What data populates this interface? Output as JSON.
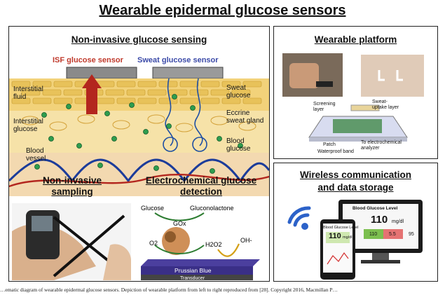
{
  "title": "Wearable epidermal glucose sensors",
  "panels": {
    "noninvasive_sensing": {
      "title": "Non-invasive glucose sensing",
      "isf_sensor": "ISF glucose sensor",
      "sweat_sensor": "Sweat glucose sensor",
      "labels": {
        "interstitial_fluid": "Interstitial\nfluid",
        "interstitial_glucose": "Interstitial\nglucose",
        "blood_vessel": "Blood\nvessel",
        "sweat_glucose": "Sweat\nglucose",
        "eccrine_gland": "Eccrine\nsweat gland",
        "blood_glucose": "Blood\nglucose"
      },
      "colors": {
        "isf": "#c0392b",
        "sweat": "#3b4aa8"
      }
    },
    "sampling": {
      "title": "Non-invasive\nsampling"
    },
    "electrochemical": {
      "title": "Electrochemical glucose\ndetection",
      "glucose": "Glucose",
      "gluconolactone": "Gluconolactone",
      "gox": "GOx",
      "o2": "O2",
      "h2o2": "H2O2",
      "oh": "OH-",
      "prussian_blue": "Prussian Blue",
      "transducer": "Transducer"
    },
    "wearable": {
      "title": "Wearable platform",
      "screening_layer": "Screening\nlayer",
      "sweat_uptake": "Sweat-\nuptake layer",
      "patch": "Patch",
      "analyzer": "To electrochemical\nanalyzer",
      "waterproof": "Waterproof band"
    },
    "wireless": {
      "title": "Wireless communication\nand data storage",
      "monitor_title": "Blood Glucose Level",
      "value": "110",
      "unit": "mg/dl",
      "phone_title": "Blood Glucose Level",
      "phone_value": "110",
      "phone_unit": "mg/dl",
      "bar_labels": [
        "110",
        "5.5",
        "95"
      ]
    }
  },
  "caption": "…ematic diagram of wearable epidermal glucose sensors. Depiction of wearable platform from left to right reproduced from [28]. Copyright 2016, Macmillan P…"
}
